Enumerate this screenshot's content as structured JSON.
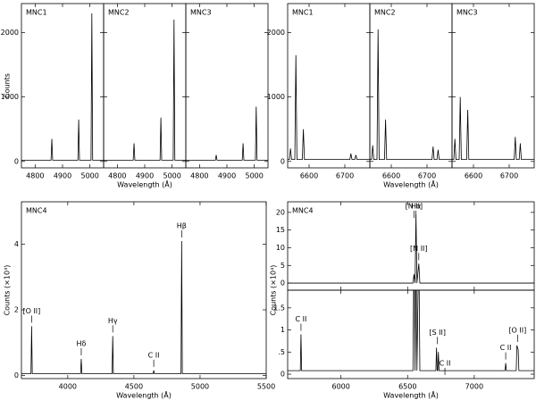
{
  "chart_data": [
    {
      "type": "line",
      "ylabel": "Counts",
      "xlabel": "Wavelength (Å)",
      "xlim": [
        4750,
        5050
      ],
      "xticks": [
        4800,
        4900,
        5000
      ],
      "ylim": [
        -100,
        2450
      ],
      "yticks": [
        0,
        1000,
        2000
      ],
      "panels": [
        {
          "label": "MNC1",
          "x": [
            4750,
            4858,
            4861,
            4864,
            4956,
            4959,
            4962,
            5004,
            5007,
            5010,
            5050
          ],
          "y": [
            20,
            20,
            350,
            20,
            20,
            650,
            20,
            20,
            2300,
            20,
            20
          ]
        },
        {
          "label": "MNC2",
          "x": [
            4750,
            4858,
            4861,
            4864,
            4956,
            4959,
            4962,
            5004,
            5007,
            5010,
            5050
          ],
          "y": [
            20,
            20,
            280,
            20,
            20,
            680,
            20,
            20,
            2200,
            20,
            20
          ]
        },
        {
          "label": "MNC3",
          "x": [
            4750,
            4858,
            4861,
            4864,
            4956,
            4959,
            4962,
            5004,
            5007,
            5010,
            5050
          ],
          "y": [
            20,
            20,
            100,
            20,
            20,
            280,
            20,
            20,
            850,
            20,
            20
          ]
        }
      ]
    },
    {
      "type": "line",
      "xlabel": "Wavelength (Å)",
      "xlim": [
        6540,
        6770
      ],
      "xticks": [
        6600,
        6700
      ],
      "ylim": [
        -100,
        2450
      ],
      "yticks": [
        0,
        1000,
        2000
      ],
      "panels": [
        {
          "label": "MNC1",
          "x": [
            6540,
            6545,
            6548,
            6551,
            6560,
            6563,
            6566,
            6581,
            6584,
            6587,
            6714,
            6717,
            6720,
            6728,
            6731,
            6734,
            6770
          ],
          "y": [
            30,
            30,
            200,
            30,
            30,
            1650,
            30,
            30,
            500,
            30,
            30,
            120,
            30,
            30,
            100,
            30,
            30
          ]
        },
        {
          "label": "MNC2",
          "x": [
            6540,
            6545,
            6548,
            6551,
            6560,
            6563,
            6566,
            6581,
            6584,
            6587,
            6714,
            6717,
            6720,
            6728,
            6731,
            6734,
            6770
          ],
          "y": [
            30,
            30,
            250,
            30,
            30,
            2050,
            30,
            30,
            650,
            30,
            30,
            230,
            30,
            30,
            180,
            30,
            30
          ]
        },
        {
          "label": "MNC3",
          "x": [
            6540,
            6545,
            6548,
            6551,
            6560,
            6563,
            6566,
            6581,
            6584,
            6587,
            6714,
            6717,
            6720,
            6728,
            6731,
            6734,
            6770
          ],
          "y": [
            30,
            30,
            350,
            30,
            30,
            1000,
            30,
            30,
            800,
            30,
            30,
            380,
            30,
            30,
            280,
            30,
            30
          ]
        }
      ]
    },
    {
      "type": "line",
      "ylabel": "Counts (×10³)",
      "xlabel": "Wavelength (Å)",
      "xlim": [
        3650,
        5500
      ],
      "xticks": [
        4000,
        4500,
        5000,
        5500
      ],
      "ylim": [
        -0.1,
        5.3
      ],
      "yticks": [
        0,
        2,
        4
      ],
      "panels": [
        {
          "label": "MNC4",
          "x": [
            3650,
            3722,
            3727,
            3732,
            4097,
            4102,
            4107,
            4335,
            4340,
            4345,
            4645,
            4650,
            4655,
            4856,
            4861,
            4866,
            5500
          ],
          "y": [
            0.05,
            0.05,
            1.5,
            0.05,
            0.05,
            0.5,
            0.05,
            0.05,
            1.2,
            0.05,
            0.05,
            0.15,
            0.05,
            0.05,
            4.1,
            0.05,
            0.05
          ],
          "annotations": [
            {
              "text": "[O II]",
              "x": 3727
            },
            {
              "text": "Hδ",
              "x": 4102
            },
            {
              "text": "Hγ",
              "x": 4340
            },
            {
              "text": "C II",
              "x": 4650
            },
            {
              "text": "Hβ",
              "x": 4861
            }
          ]
        }
      ]
    },
    {
      "type": "line",
      "ylabel": "Counts (×10⁴)",
      "xlabel": "Wavelength (Å)",
      "xlim": [
        5600,
        7450
      ],
      "xticks": [
        6000,
        6500,
        7000
      ],
      "panels": [
        {
          "label": "MNC4",
          "ylim": [
            -2,
            23
          ],
          "yticks": [
            0,
            5,
            10,
            15,
            20
          ],
          "x": [
            5600,
            6540,
            6548,
            6556,
            6563,
            6570,
            6584,
            6592,
            7450
          ],
          "y": [
            0,
            0,
            2.5,
            0,
            19.5,
            0,
            5.5,
            0,
            0
          ],
          "annotations": [
            {
              "text": "Hα",
              "x": 6563
            },
            {
              "text": "[N II]",
              "x": 6548
            },
            {
              "text": "[N II]",
              "x": 6584
            }
          ]
        },
        {
          "ylim": [
            -0.1,
            1.9
          ],
          "yticks": [
            0,
            {
              "value": 0.5,
              "label": ".5"
            },
            1,
            1.5
          ],
          "x": [
            5600,
            5695,
            5700,
            5705,
            6540,
            6548,
            6556,
            6563,
            6570,
            6584,
            6592,
            6712,
            6717,
            6722,
            6726,
            6731,
            6736,
            7231,
            7236,
            7241,
            7315,
            7320,
            7330,
            7335,
            7450
          ],
          "y": [
            0.08,
            0.08,
            0.9,
            0.08,
            0.08,
            3,
            0.08,
            3,
            0.08,
            3,
            0.08,
            0.08,
            0.6,
            0.08,
            0.08,
            0.5,
            0.08,
            0.08,
            0.25,
            0.08,
            0.08,
            0.65,
            0.55,
            0.08,
            0.08
          ],
          "annotations": [
            {
              "text": "C II",
              "x": 5700
            },
            {
              "text": "[S II]",
              "x": 6724
            },
            {
              "text": "C II",
              "x": 6780
            },
            {
              "text": "C II",
              "x": 7236
            },
            {
              "text": "[O II]",
              "x": 7325
            }
          ]
        }
      ]
    }
  ]
}
